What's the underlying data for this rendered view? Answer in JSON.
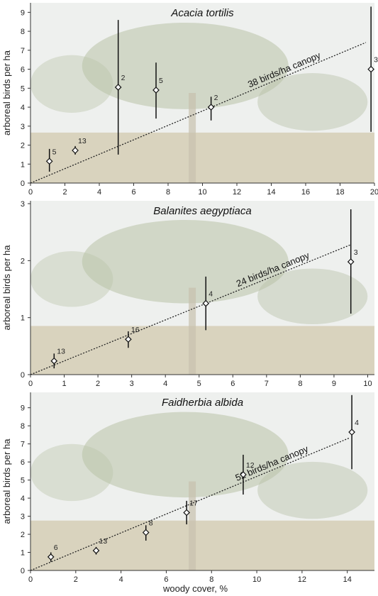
{
  "colors": {
    "sky": "#eef0ee",
    "foliage": "#b9c2a8",
    "ground": "#d9d3be",
    "marker": "#111111",
    "fit_line": "#222222"
  },
  "x_axis_label": "woody cover, %",
  "chart_data": [
    {
      "type": "scatter",
      "title": "Acacia tortilis",
      "ylabel": "arboreal birds per ha",
      "xlim": [
        0,
        20
      ],
      "ylim": [
        0,
        9.5
      ],
      "xticks": [
        0,
        2,
        4,
        6,
        8,
        10,
        12,
        14,
        16,
        18,
        20
      ],
      "yticks": [
        0,
        1,
        2,
        3,
        4,
        5,
        6,
        7,
        8,
        9
      ],
      "fit_label": "38 birds/ha canopy",
      "fit_slope": 0.38,
      "fit_x_end": 19.5,
      "points": [
        {
          "x": 1.1,
          "y": 1.15,
          "low": 0.6,
          "high": 1.8,
          "n": "5"
        },
        {
          "x": 2.6,
          "y": 1.72,
          "low": 1.5,
          "high": 1.95,
          "n": "13"
        },
        {
          "x": 5.1,
          "y": 5.05,
          "low": 1.5,
          "high": 8.6,
          "n": "2"
        },
        {
          "x": 7.3,
          "y": 4.9,
          "low": 3.4,
          "high": 6.35,
          "n": "5"
        },
        {
          "x": 10.5,
          "y": 4.0,
          "low": 3.3,
          "high": 4.55,
          "n": "2"
        },
        {
          "x": 19.8,
          "y": 6.0,
          "low": 2.7,
          "high": 9.3,
          "n": "3"
        }
      ]
    },
    {
      "type": "scatter",
      "title": "Balanites aegyptiaca",
      "ylabel": "arboreal birds per ha",
      "xlim": [
        0,
        10.2
      ],
      "ylim": [
        0,
        3.05
      ],
      "xticks": [
        0,
        1,
        2,
        3,
        4,
        5,
        6,
        7,
        8,
        9,
        10
      ],
      "yticks": [
        0,
        1,
        2,
        3
      ],
      "fit_label": "24 birds/ha canopy",
      "fit_slope": 0.24,
      "fit_x_end": 9.5,
      "points": [
        {
          "x": 0.7,
          "y": 0.24,
          "low": 0.11,
          "high": 0.37,
          "n": "13"
        },
        {
          "x": 2.9,
          "y": 0.62,
          "low": 0.47,
          "high": 0.76,
          "n": "16"
        },
        {
          "x": 5.2,
          "y": 1.25,
          "low": 0.78,
          "high": 1.72,
          "n": "4"
        },
        {
          "x": 9.5,
          "y": 1.98,
          "low": 1.07,
          "high": 2.9,
          "n": "3"
        }
      ]
    },
    {
      "type": "scatter",
      "title": "Faidherbia albida",
      "ylabel": "arboreal birds per ha",
      "xlim": [
        0,
        15.2
      ],
      "ylim": [
        0,
        9.85
      ],
      "xticks": [
        0,
        2,
        4,
        6,
        8,
        10,
        12,
        14
      ],
      "yticks": [
        0,
        1,
        2,
        3,
        4,
        5,
        6,
        7,
        8,
        9
      ],
      "fit_label": "52 birds/ha canopy",
      "fit_slope": 0.52,
      "fit_x_end": 14.1,
      "points": [
        {
          "x": 0.9,
          "y": 0.75,
          "low": 0.48,
          "high": 1.0,
          "n": "6"
        },
        {
          "x": 2.9,
          "y": 1.1,
          "low": 0.88,
          "high": 1.3,
          "n": "13"
        },
        {
          "x": 5.1,
          "y": 2.1,
          "low": 1.65,
          "high": 2.5,
          "n": "8"
        },
        {
          "x": 6.9,
          "y": 3.2,
          "low": 2.55,
          "high": 3.85,
          "n": "17"
        },
        {
          "x": 9.4,
          "y": 5.3,
          "low": 4.2,
          "high": 6.4,
          "n": "12"
        },
        {
          "x": 14.2,
          "y": 7.65,
          "low": 5.6,
          "high": 9.7,
          "n": "4"
        }
      ]
    }
  ]
}
